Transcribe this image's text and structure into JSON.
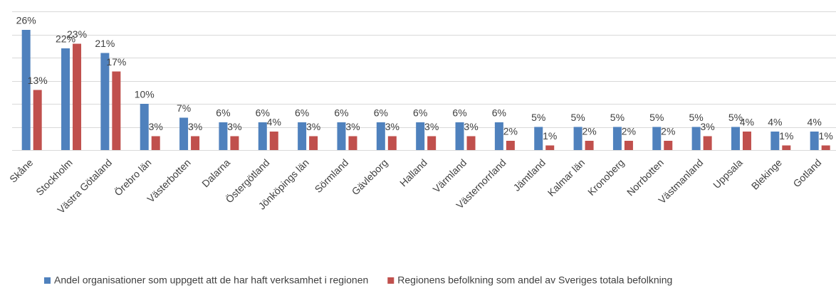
{
  "chart_data": {
    "type": "bar",
    "categories": [
      "Skåne",
      "Stockholm",
      "Västra Götaland",
      "Örebro län",
      "Västerbotten",
      "Dalarna",
      "Östergötland",
      "Jönköpings län",
      "Sörmland",
      "Gävleborg",
      "Halland",
      "Värmland",
      "Västernorrland",
      "Jämtland",
      "Kalmar län",
      "Kronoberg",
      "Norrbotten",
      "Västmanland",
      "Uppsala",
      "Blekinge",
      "Gotland"
    ],
    "series": [
      {
        "name": "Andel organisationer som uppgett att de har haft verksamhet i regionen",
        "color": "#4f81bd",
        "values": [
          26,
          22,
          21,
          10,
          7,
          6,
          6,
          6,
          6,
          6,
          6,
          6,
          6,
          5,
          5,
          5,
          5,
          5,
          5,
          4,
          4
        ],
        "value_labels": [
          "26%",
          "22%",
          "21%",
          "10%",
          "7%",
          "6%",
          "6%",
          "6%",
          "6%",
          "6%",
          "6%",
          "6%",
          "6%",
          "5%",
          "5%",
          "5%",
          "5%",
          "5%",
          "5%",
          "4%",
          "4%"
        ]
      },
      {
        "name": "Regionens befolkning som andel av Sveriges totala befolkning",
        "color": "#c0504d",
        "values": [
          13,
          23,
          17,
          3,
          3,
          3,
          4,
          3,
          3,
          3,
          3,
          3,
          2,
          1,
          2,
          2,
          2,
          3,
          4,
          1,
          1
        ],
        "value_labels": [
          "13%",
          "23%",
          "17%",
          "3%",
          "3%",
          "3%",
          "4%",
          "3%",
          "3%",
          "3%",
          "3%",
          "3%",
          "2%",
          "1%",
          "2%",
          "2%",
          "2%",
          "3%",
          "4%",
          "1%",
          "1%"
        ]
      }
    ],
    "ylim": [
      0,
      30
    ],
    "yticks": [
      0,
      5,
      10,
      15,
      20,
      25,
      30
    ],
    "grid": true,
    "legend": "bottom"
  }
}
